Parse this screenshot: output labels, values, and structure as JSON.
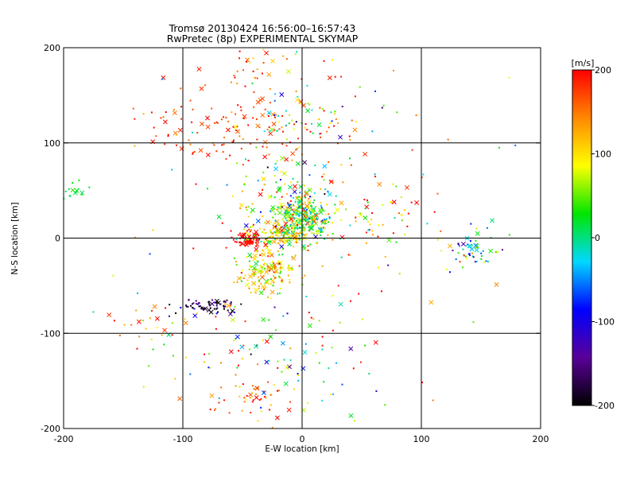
{
  "chart_data": {
    "type": "scatter",
    "title": "Tromsø 20130424 16:56:00–16:57:43",
    "subtitle": "RwPretec (8p) EXPERIMENTAL SKYMAP",
    "xlabel": "E-W location [km]",
    "ylabel": "N-S location [km]",
    "xlim": [
      -200,
      200
    ],
    "ylim": [
      -200,
      200
    ],
    "x_ticks": [
      "-200",
      "-100",
      "0",
      "100",
      "200"
    ],
    "y_ticks": [
      "-200",
      "-100",
      "0",
      "100",
      "200"
    ],
    "grid": true,
    "marker_types": [
      "dot",
      "cross"
    ],
    "colorbar": {
      "label": "[m/s]",
      "range": [
        -200,
        200
      ],
      "ticks": [
        "200",
        "100",
        "0",
        "-100",
        "-200"
      ],
      "colormap": [
        "#000000",
        "#5a0099",
        "#0000ff",
        "#00d8ff",
        "#00e600",
        "#ffff00",
        "#ff8800",
        "#ff0000"
      ]
    },
    "clusters": [
      {
        "x": 2,
        "y": 22,
        "sx": 10,
        "sy": 10,
        "v": 40,
        "vs": 70,
        "n": 260
      },
      {
        "x": -20,
        "y": 5,
        "sx": 14,
        "sy": 6,
        "v": 90,
        "vs": 50,
        "n": 130
      },
      {
        "x": -45,
        "y": -2,
        "sx": 6,
        "sy": 4,
        "v": 195,
        "vs": 8,
        "n": 70
      },
      {
        "x": -30,
        "y": -35,
        "sx": 14,
        "sy": 12,
        "v": 100,
        "vs": 45,
        "n": 160
      },
      {
        "x": -80,
        "y": -72,
        "sx": 14,
        "sy": 5,
        "v": -170,
        "vs": 40,
        "n": 70
      },
      {
        "x": -15,
        "y": 45,
        "sx": 28,
        "sy": 25,
        "v": 60,
        "vs": 80,
        "n": 120
      },
      {
        "x": -60,
        "y": 120,
        "sx": 40,
        "sy": 25,
        "v": 180,
        "vs": 25,
        "n": 130
      },
      {
        "x": 5,
        "y": 120,
        "sx": 25,
        "sy": 18,
        "v": 50,
        "vs": 110,
        "n": 70
      },
      {
        "x": -40,
        "y": 180,
        "sx": 25,
        "sy": 12,
        "v": 150,
        "vs": 60,
        "n": 35
      },
      {
        "x": -40,
        "y": -165,
        "sx": 22,
        "sy": 12,
        "v": 160,
        "vs": 40,
        "n": 45
      },
      {
        "x": -5,
        "y": -125,
        "sx": 50,
        "sy": 30,
        "v": 40,
        "vs": 120,
        "n": 90
      },
      {
        "x": 145,
        "y": -15,
        "sx": 15,
        "sy": 12,
        "v": -20,
        "vs": 80,
        "n": 55
      },
      {
        "x": -190,
        "y": 50,
        "sx": 6,
        "sy": 6,
        "v": 20,
        "vs": 10,
        "n": 15
      },
      {
        "x": -120,
        "y": -90,
        "sx": 15,
        "sy": 10,
        "v": 150,
        "vs": 60,
        "n": 25
      },
      {
        "x": 60,
        "y": 20,
        "sx": 25,
        "sy": 20,
        "v": 130,
        "vs": 80,
        "n": 60
      },
      {
        "x": 0,
        "y": 0,
        "sx": 90,
        "sy": 90,
        "v": 100,
        "vs": 100,
        "n": 120
      }
    ]
  }
}
